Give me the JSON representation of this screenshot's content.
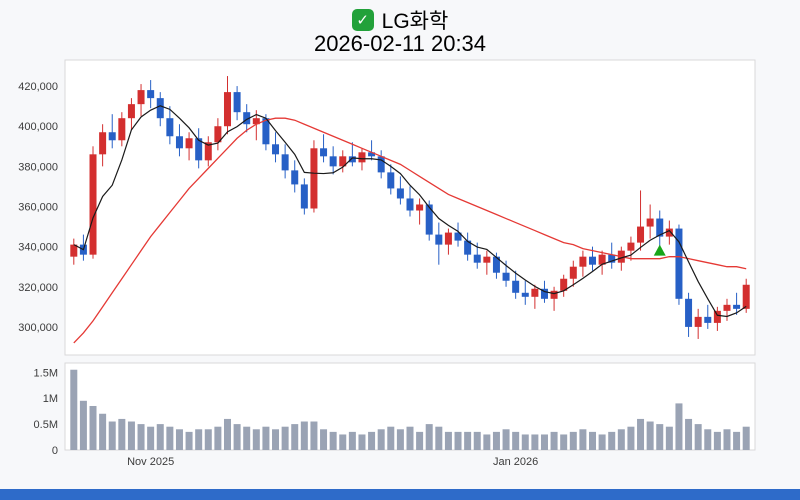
{
  "header": {
    "title": "LG화학",
    "datetime": "2026-02-11 20:34",
    "check_glyph": "✓"
  },
  "colors": {
    "page_bg": "#f7f8fa",
    "plot_bg": "#ffffff",
    "plot_border": "#d9d9d9",
    "axis_text": "#3c3c3c",
    "up_candle": "#d32f2f",
    "down_candle": "#2760c6",
    "ma_long": "#e53935",
    "ma_short": "#1a1a1a",
    "volume_bar": "#9aa3b4",
    "marker": "#18a518",
    "check_icon": "#22a13a",
    "bottom_bar": "#2e6bc9"
  },
  "chart_data": {
    "type": "candlestick",
    "title": "LG화학",
    "datetime": "2026-02-11 20:34",
    "price_axis": {
      "ylim": [
        286000,
        433000
      ],
      "ticks": [
        300000,
        320000,
        340000,
        360000,
        380000,
        400000,
        420000
      ],
      "labels": [
        "300,000",
        "320,000",
        "340,000",
        "360,000",
        "380,000",
        "400,000",
        "420,000"
      ]
    },
    "volume_axis": {
      "ylim": [
        0,
        1680000
      ],
      "ticks": [
        0,
        500000,
        1000000,
        1500000
      ],
      "labels": [
        "0",
        "0.5M",
        "1M",
        "1.5M"
      ]
    },
    "x_axis": {
      "labels": [
        {
          "index": 8,
          "text": "Nov 2025"
        },
        {
          "index": 46,
          "text": "Jan 2026"
        }
      ]
    },
    "candles": [
      [
        335000,
        344000,
        331000,
        341000,
        1550000
      ],
      [
        341000,
        346000,
        333000,
        336000,
        950000
      ],
      [
        336000,
        390000,
        334000,
        386000,
        850000
      ],
      [
        386000,
        401000,
        380000,
        397000,
        700000
      ],
      [
        397000,
        406000,
        389000,
        393000,
        550000
      ],
      [
        393000,
        407000,
        390000,
        404000,
        600000
      ],
      [
        404000,
        414000,
        398000,
        411000,
        550000
      ],
      [
        411000,
        421000,
        405000,
        418000,
        500000
      ],
      [
        418000,
        423000,
        409000,
        414000,
        450000
      ],
      [
        414000,
        417000,
        400000,
        404000,
        500000
      ],
      [
        404000,
        410000,
        391000,
        395000,
        450000
      ],
      [
        395000,
        401000,
        385000,
        389000,
        400000
      ],
      [
        389000,
        397000,
        383000,
        394000,
        350000
      ],
      [
        394000,
        399000,
        379000,
        383000,
        400000
      ],
      [
        383000,
        395000,
        380000,
        392000,
        400000
      ],
      [
        392000,
        404000,
        388000,
        400000,
        450000
      ],
      [
        400000,
        425000,
        396000,
        417000,
        600000
      ],
      [
        417000,
        420000,
        403000,
        407000,
        500000
      ],
      [
        407000,
        411000,
        397000,
        401000,
        450000
      ],
      [
        401000,
        408000,
        393000,
        404000,
        400000
      ],
      [
        404000,
        406000,
        388000,
        391000,
        450000
      ],
      [
        391000,
        397000,
        382000,
        386000,
        400000
      ],
      [
        386000,
        391000,
        374000,
        378000,
        450000
      ],
      [
        378000,
        383000,
        367000,
        371000,
        500000
      ],
      [
        371000,
        374000,
        356000,
        359000,
        550000
      ],
      [
        359000,
        393000,
        357000,
        389000,
        550000
      ],
      [
        389000,
        396000,
        382000,
        385000,
        400000
      ],
      [
        385000,
        390000,
        376000,
        380000,
        350000
      ],
      [
        380000,
        388000,
        377000,
        385000,
        300000
      ],
      [
        385000,
        392000,
        380000,
        382000,
        350000
      ],
      [
        382000,
        389000,
        378000,
        387000,
        300000
      ],
      [
        387000,
        393000,
        383000,
        385000,
        350000
      ],
      [
        385000,
        388000,
        374000,
        377000,
        400000
      ],
      [
        377000,
        381000,
        366000,
        369000,
        450000
      ],
      [
        369000,
        375000,
        361000,
        364000,
        400000
      ],
      [
        364000,
        370000,
        355000,
        358000,
        450000
      ],
      [
        358000,
        364000,
        351000,
        361000,
        350000
      ],
      [
        361000,
        363000,
        343000,
        346000,
        500000
      ],
      [
        346000,
        352000,
        331000,
        341000,
        450000
      ],
      [
        341000,
        349000,
        336000,
        347000,
        350000
      ],
      [
        347000,
        352000,
        340000,
        343000,
        350000
      ],
      [
        343000,
        347000,
        333000,
        336000,
        350000
      ],
      [
        336000,
        342000,
        329000,
        332000,
        350000
      ],
      [
        332000,
        338000,
        326000,
        335000,
        300000
      ],
      [
        335000,
        337000,
        324000,
        327000,
        350000
      ],
      [
        327000,
        333000,
        320000,
        323000,
        400000
      ],
      [
        323000,
        328000,
        314000,
        317000,
        350000
      ],
      [
        317000,
        323000,
        311000,
        315000,
        300000
      ],
      [
        315000,
        321000,
        309000,
        319000,
        300000
      ],
      [
        319000,
        323000,
        312000,
        314000,
        300000
      ],
      [
        314000,
        320000,
        308000,
        318000,
        350000
      ],
      [
        318000,
        326000,
        315000,
        324000,
        300000
      ],
      [
        324000,
        333000,
        320000,
        330000,
        350000
      ],
      [
        330000,
        338000,
        325000,
        335000,
        400000
      ],
      [
        335000,
        340000,
        328000,
        331000,
        350000
      ],
      [
        331000,
        338000,
        326000,
        336000,
        300000
      ],
      [
        336000,
        342000,
        329000,
        332000,
        350000
      ],
      [
        332000,
        340000,
        328000,
        338000,
        400000
      ],
      [
        338000,
        345000,
        333000,
        342000,
        450000
      ],
      [
        342000,
        368000,
        338000,
        350000,
        600000
      ],
      [
        350000,
        361000,
        344000,
        354000,
        550000
      ],
      [
        354000,
        358000,
        340000,
        345000,
        500000
      ],
      [
        345000,
        353000,
        341000,
        349000,
        450000
      ],
      [
        349000,
        351000,
        311000,
        314000,
        900000
      ],
      [
        314000,
        317000,
        295000,
        300000,
        600000
      ],
      [
        300000,
        309000,
        294000,
        305000,
        500000
      ],
      [
        305000,
        311000,
        299000,
        302000,
        400000
      ],
      [
        302000,
        310000,
        298000,
        308000,
        350000
      ],
      [
        308000,
        314000,
        303000,
        311000,
        400000
      ],
      [
        311000,
        317000,
        306000,
        309000,
        350000
      ],
      [
        309000,
        324000,
        307000,
        321000,
        450000
      ]
    ],
    "ma_long": [
      292000,
      297000,
      303000,
      310000,
      317000,
      324000,
      331000,
      338000,
      345000,
      351000,
      357000,
      363000,
      369000,
      374000,
      379000,
      384000,
      389000,
      394000,
      398000,
      401000,
      403000,
      404000,
      404000,
      403000,
      401000,
      399000,
      397000,
      395000,
      393000,
      391000,
      389000,
      387000,
      385000,
      383000,
      381000,
      378000,
      375000,
      372000,
      369000,
      366000,
      364000,
      362000,
      360000,
      358000,
      356000,
      354000,
      352000,
      350000,
      348000,
      346000,
      344000,
      342000,
      341000,
      339000,
      338000,
      337000,
      336000,
      335000,
      334000,
      334000,
      334000,
      334000,
      335000,
      335000,
      334000,
      333000,
      332000,
      331000,
      330000,
      330000,
      329000
    ],
    "ma_short": {
      "window": 5,
      "source": "close"
    },
    "marker": {
      "index": 61,
      "price": 338000,
      "shape": "triangle-up",
      "color": "#18a518"
    }
  }
}
